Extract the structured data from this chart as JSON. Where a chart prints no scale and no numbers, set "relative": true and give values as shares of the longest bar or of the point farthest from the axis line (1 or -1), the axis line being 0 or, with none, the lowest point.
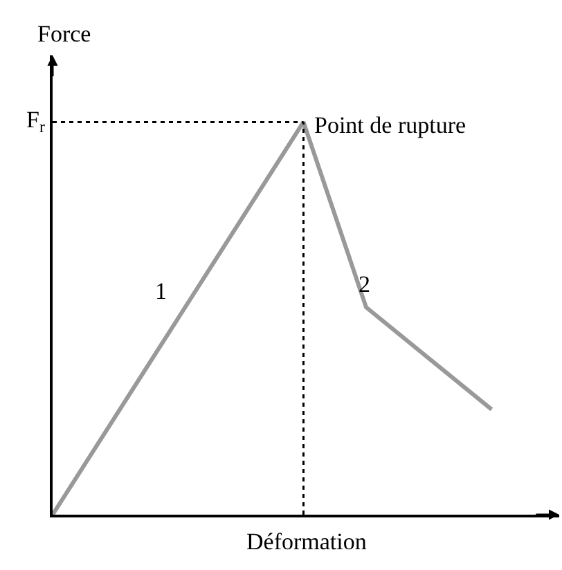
{
  "chart_data": {
    "type": "line",
    "relative": true,
    "xlabel": "Déformation",
    "ylabel": "Force",
    "categories": [
      null,
      null,
      null,
      null,
      null,
      null,
      null,
      null
    ],
    "series": [
      {
        "color": "#999999",
        "values": [
          0,
          0.25,
          0.5,
          0.75,
          1,
          0.528,
          0.398,
          0.268
        ]
      }
    ],
    "ref_lines": [
      {
        "axis": "y",
        "value": 1,
        "label": "F$_{r}$",
        "line_style": "dotted",
        "color": "#000000"
      },
      {
        "axis": "x",
        "line_style": "dotted",
        "color": "#000000"
      }
    ],
    "annotations": [
      "Point de rupture",
      "1",
      "2"
    ],
    "marker": "none",
    "line_style": "solid"
  }
}
